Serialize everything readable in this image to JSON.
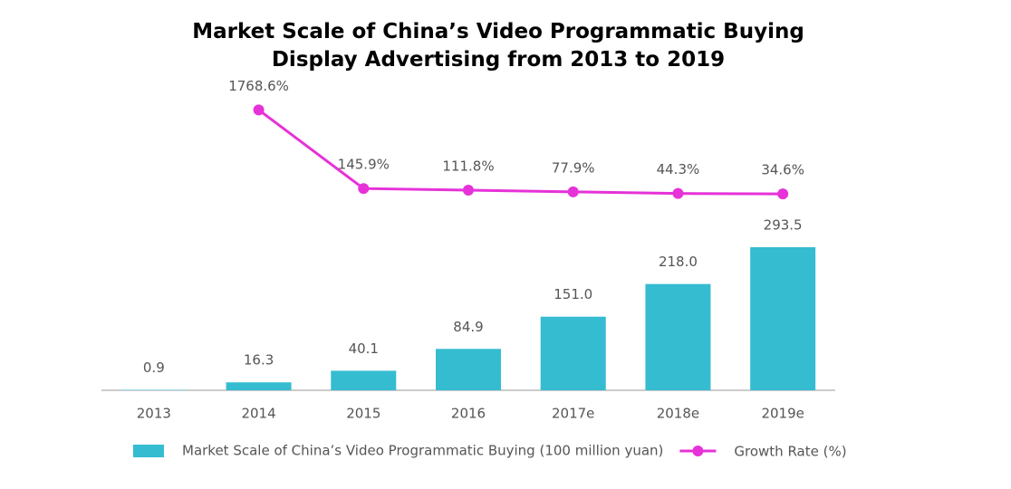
{
  "chart_data": {
    "type": "bar-line",
    "title": "Market Scale of China’s Video Programmatic Buying Display Advertising from 2013 to 2019",
    "categories": [
      "2013",
      "2014",
      "2015",
      "2016",
      "2017e",
      "2018e",
      "2019e"
    ],
    "series": [
      {
        "name": "Market Scale of China’s Video Programmatic Buying (100 million yuan)",
        "type": "bar",
        "color": "#35bcd1",
        "values": [
          0.9,
          16.3,
          40.1,
          84.9,
          151.0,
          218.0,
          293.5
        ],
        "value_labels": [
          "0.9",
          "16.3",
          "40.1",
          "84.9",
          "151.0",
          "218.0",
          "293.5"
        ]
      },
      {
        "name": "Growth Rate (%)",
        "type": "line",
        "axis": "y2",
        "color": "#e632d8",
        "values": [
          null,
          1768.6,
          145.9,
          111.8,
          77.9,
          44.3,
          34.6
        ],
        "value_labels": [
          null,
          "1768.6%",
          "145.9%",
          "111.8%",
          "77.9%",
          "44.3%",
          "34.6%"
        ]
      }
    ],
    "ylim": [
      0,
      300
    ],
    "y2lim": [
      0,
      2000
    ],
    "legend": "bottom"
  }
}
